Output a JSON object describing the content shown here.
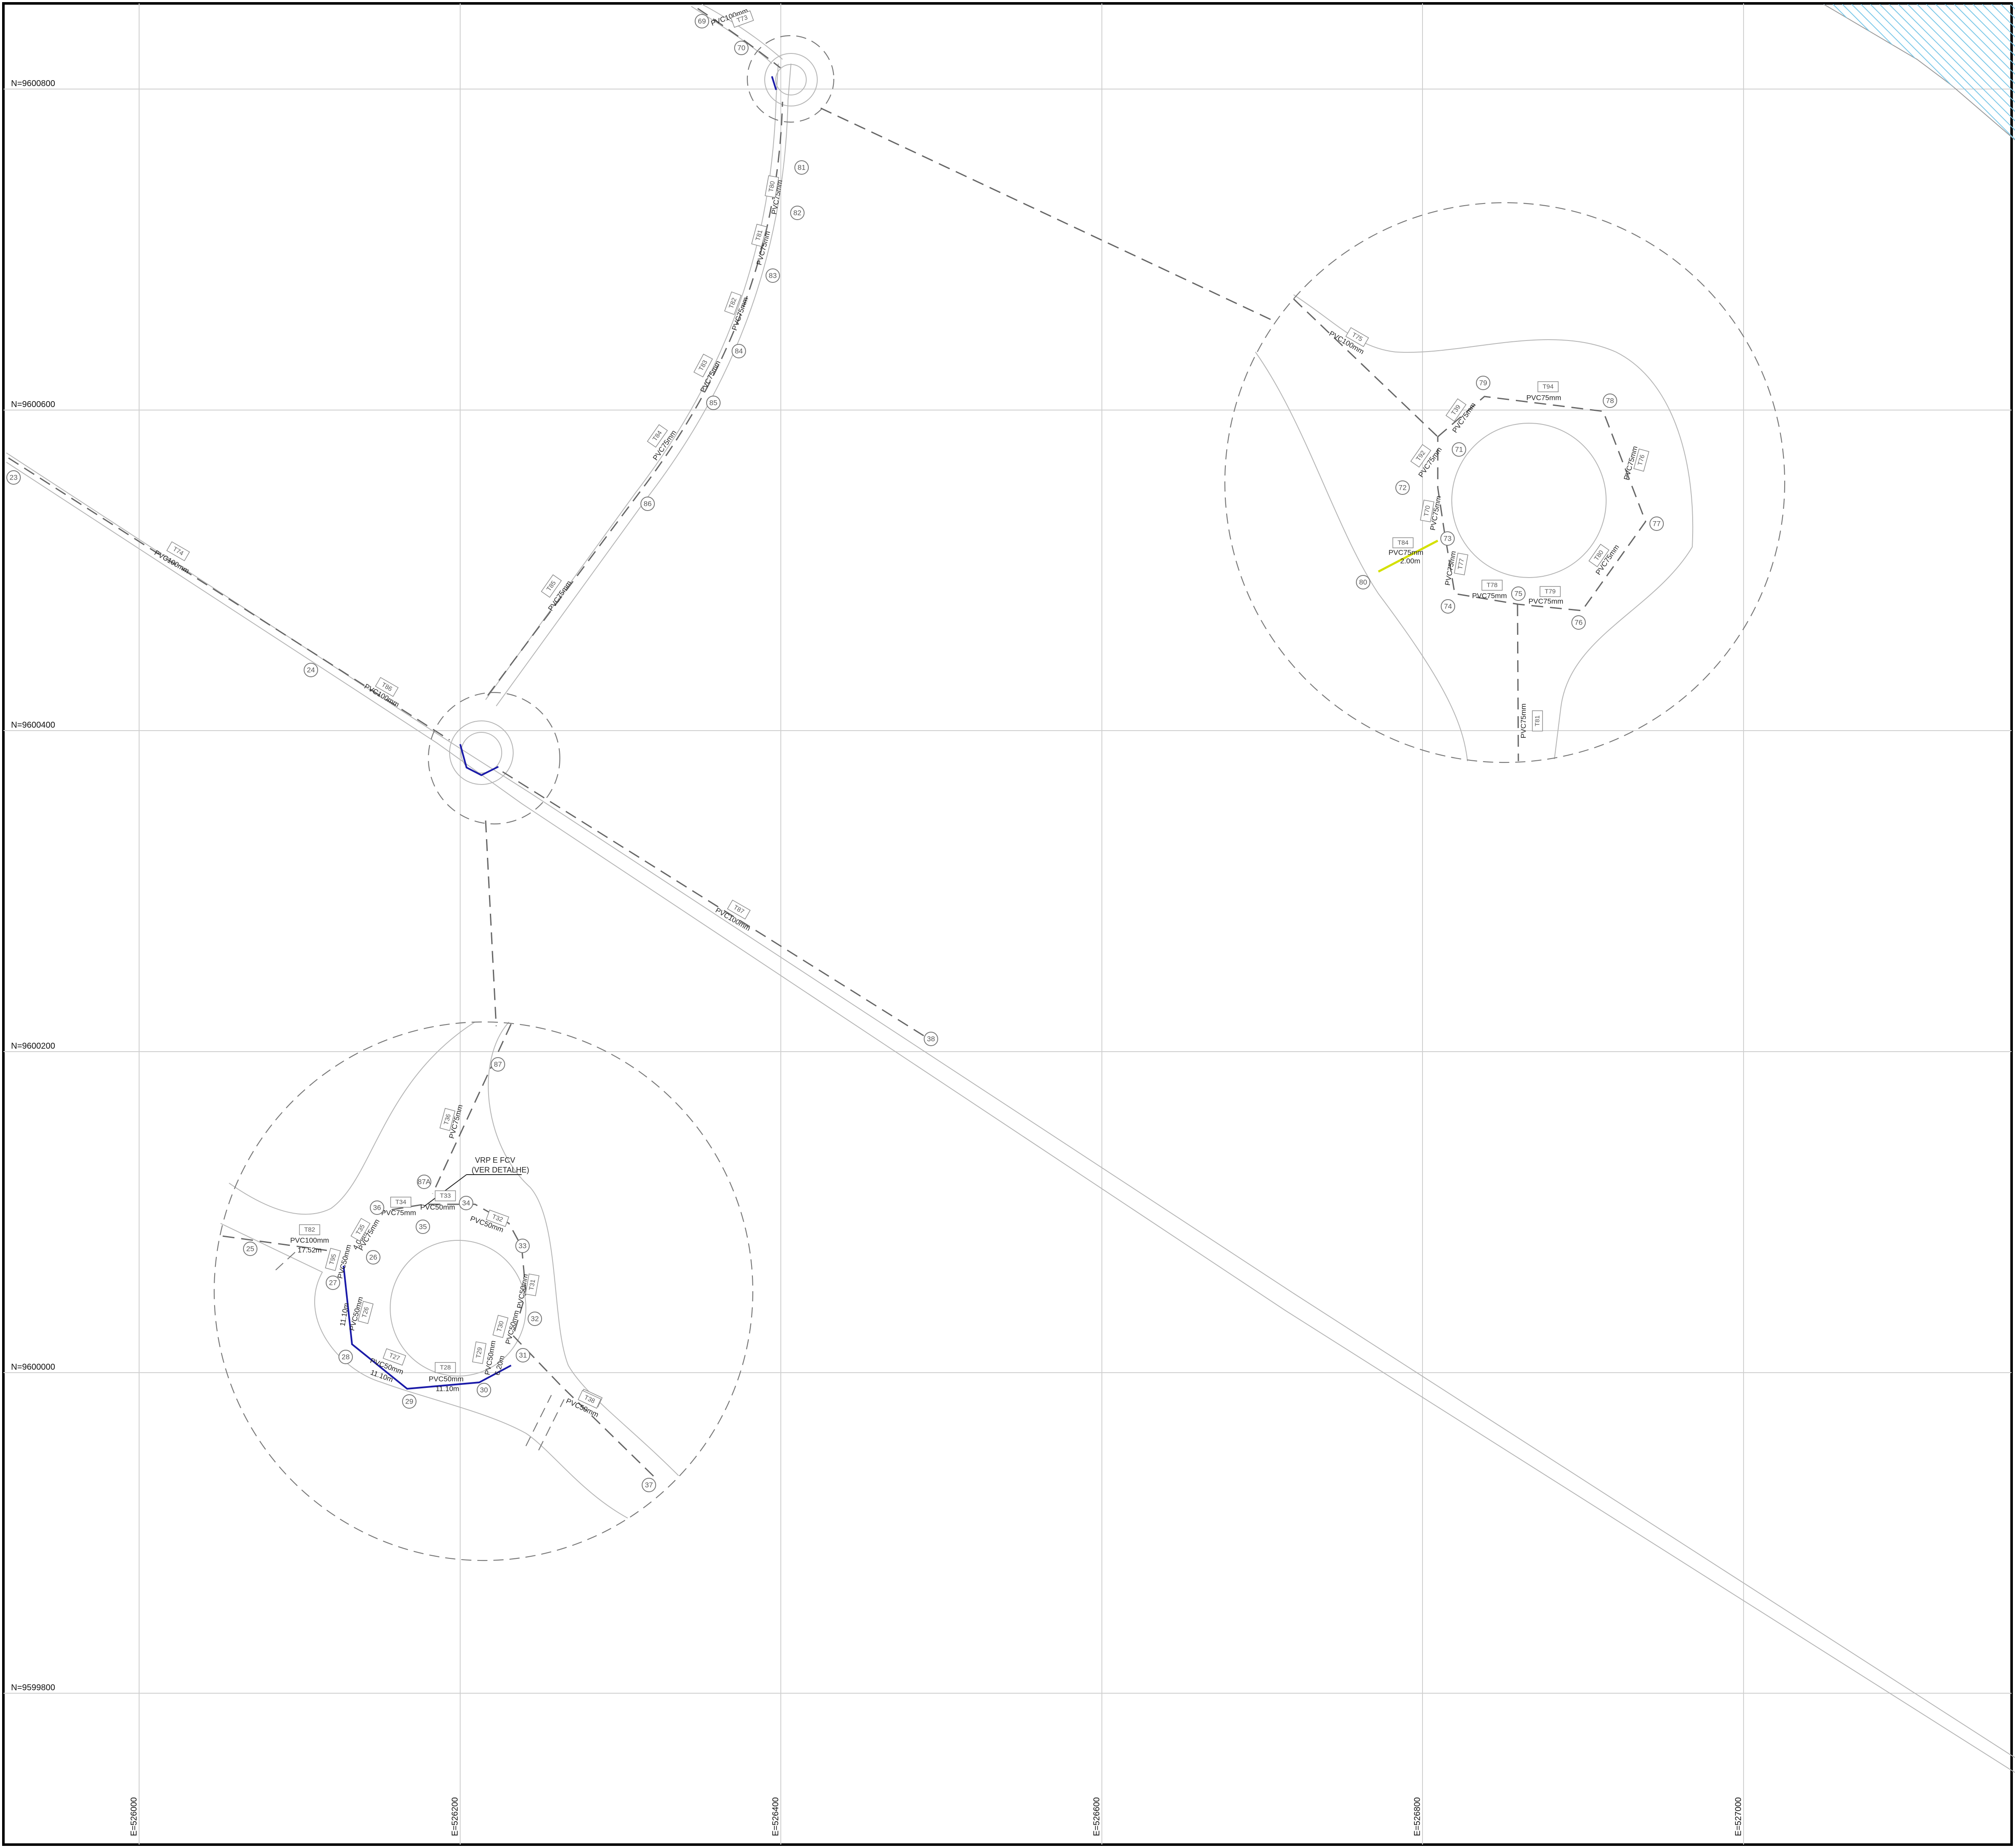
{
  "grid": {
    "northings": [
      {
        "label": "N=9600800"
      },
      {
        "label": "N=9600600"
      },
      {
        "label": "N=9600400"
      },
      {
        "label": "N=9600200"
      },
      {
        "label": "N=9600000"
      },
      {
        "label": "N=9599800"
      }
    ],
    "eastings": [
      {
        "label": "E=526000"
      },
      {
        "label": "E=526200"
      },
      {
        "label": "E=526400"
      },
      {
        "label": "E=526600"
      },
      {
        "label": "E=526800"
      },
      {
        "label": "E=527000"
      }
    ]
  },
  "nodes": [
    "69",
    "70",
    "81",
    "82",
    "83",
    "84",
    "85",
    "86",
    "23",
    "24",
    "79",
    "78",
    "71",
    "72",
    "73",
    "77",
    "80",
    "74",
    "75",
    "76",
    "38",
    "87",
    "87A",
    "36",
    "35",
    "34",
    "25",
    "26",
    "27",
    "33",
    "28",
    "29",
    "30",
    "31",
    "32",
    "37"
  ],
  "pipe_tags": [
    "T73",
    "T74",
    "T80",
    "T81",
    "T82",
    "T83",
    "T84",
    "T85",
    "T86",
    "T87",
    "T75",
    "T39",
    "T94",
    "T92",
    "T70",
    "T76",
    "T84",
    "T77",
    "T78",
    "T79",
    "T80",
    "T81",
    "T82",
    "T95",
    "T26",
    "T27",
    "T28",
    "T29",
    "T30",
    "T31",
    "T32",
    "T33",
    "T34",
    "T35",
    "T36",
    "T37",
    "T38"
  ],
  "pipe_labels": {
    "pvc100": "PVC100mm",
    "pvc75": "PVC75mm",
    "pvc50": "PVC50mm",
    "len_1752": "17.52m",
    "len_1110": "11.10m",
    "len_200": "2.00m",
    "len_400": "4.00m",
    "len_620": "6.20m"
  },
  "annotation": {
    "line1": "VRP E FCV",
    "line2": "(VER DETALHE)"
  },
  "colors": {
    "grid": "#cfcfcf",
    "road": "#b5b5b5",
    "pipe_dashed": "#666666",
    "pipe_blue": "#1a1aa8",
    "pipe_yellow": "#d4e000",
    "hatch": "#7ac8e8"
  }
}
